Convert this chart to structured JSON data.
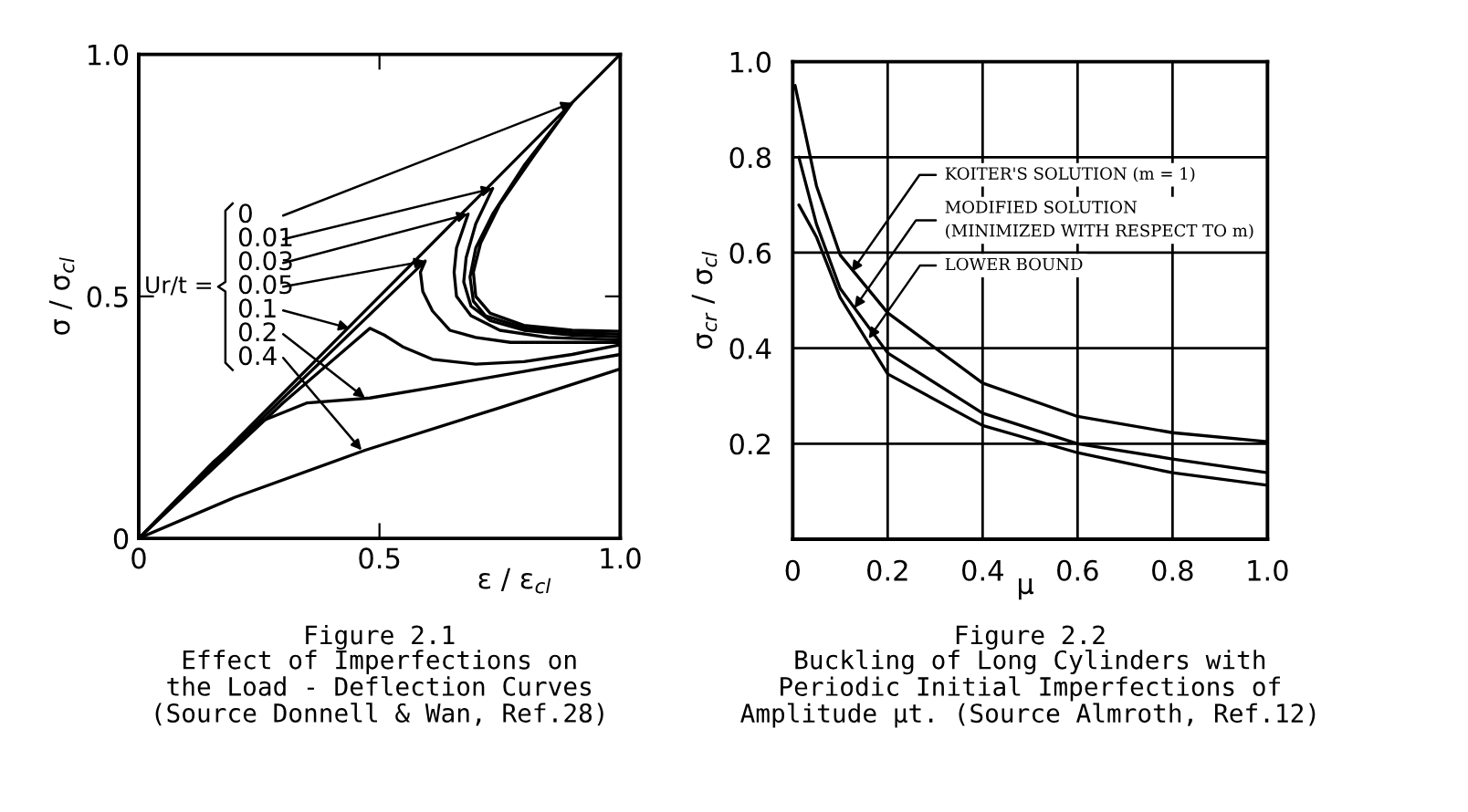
{
  "chart_data": [
    {
      "type": "line",
      "title": "Figure 2.1",
      "subtitle": "Effect of Imperfections on\nthe Load - Deflection Curves\n(Source Donnell & Wan, Ref.28)",
      "xlabel": "ε / ε$_{cl}$",
      "ylabel": "σ / σ$_{cl}$",
      "xlim": [
        0,
        1.0
      ],
      "ylim": [
        0,
        1.0
      ],
      "xticks": [
        0,
        0.5,
        {
          "value": 1.0,
          "label": "1.0"
        }
      ],
      "yticks": [
        0,
        0.5,
        {
          "value": 1.0,
          "label": "1.0"
        }
      ],
      "grid": false,
      "legend": false,
      "marker": "none",
      "line_style": "solid",
      "series": [
        {
          "color": "#000000",
          "x": [
            0,
            1.0
          ],
          "values": [
            0,
            1.0
          ]
        },
        {
          "color": "#000000",
          "x": [
            0.9,
            0.82,
            0.75,
            0.71,
            0.695,
            0.7,
            0.73,
            0.8,
            0.9,
            1.0
          ],
          "values": [
            0.9,
            0.79,
            0.69,
            0.61,
            0.55,
            0.5,
            0.465,
            0.44,
            0.43,
            0.428
          ]
        },
        {
          "color": "#000000",
          "x": [
            0.87,
            0.8,
            0.735,
            0.7,
            0.688,
            0.695,
            0.72,
            0.8,
            0.9,
            1.0
          ],
          "values": [
            0.86,
            0.77,
            0.67,
            0.6,
            0.54,
            0.49,
            0.46,
            0.435,
            0.425,
            0.422
          ]
        },
        {
          "color": "#000000",
          "x": [
            0.735,
            0.7,
            0.68,
            0.675,
            0.69,
            0.73,
            0.8,
            0.9,
            1.0
          ],
          "values": [
            0.723,
            0.65,
            0.58,
            0.53,
            0.48,
            0.45,
            0.43,
            0.42,
            0.416
          ]
        },
        {
          "color": "#000000",
          "x": [
            0.684,
            0.66,
            0.655,
            0.66,
            0.69,
            0.75,
            0.85,
            1.0
          ],
          "values": [
            0.67,
            0.6,
            0.55,
            0.5,
            0.46,
            0.43,
            0.415,
            0.41
          ]
        },
        {
          "color": "#000000",
          "x": [
            0,
            0.3,
            0.595,
            0.585,
            0.59,
            0.61,
            0.646,
            0.7,
            0.772,
            0.9,
            1.0
          ],
          "values": [
            0,
            0.29,
            0.573,
            0.55,
            0.51,
            0.47,
            0.43,
            0.415,
            0.405,
            0.405,
            0.405
          ]
        },
        {
          "color": "#000000",
          "x": [
            0,
            0.15,
            0.3,
            0.44,
            0.48,
            0.51,
            0.55,
            0.61,
            0.7,
            0.8,
            0.9,
            1.0
          ],
          "values": [
            0,
            0.14,
            0.28,
            0.4,
            0.434,
            0.42,
            0.395,
            0.37,
            0.36,
            0.365,
            0.38,
            0.4
          ]
        },
        {
          "color": "#000000",
          "x": [
            0,
            0.154,
            0.25,
            0.35,
            0.48,
            0.6,
            0.8,
            1.0
          ],
          "values": [
            0,
            0.157,
            0.24,
            0.28,
            0.29,
            0.31,
            0.345,
            0.38
          ]
        },
        {
          "color": "#000000",
          "x": [
            0,
            0.2,
            0.47,
            0.75,
            1.0
          ],
          "values": [
            0,
            0.085,
            0.182,
            0.27,
            0.35
          ]
        }
      ],
      "annotations": [
        "Ur/t =",
        {
          "text": "0",
          "x": 0.9,
          "y": 0.9
        },
        {
          "text": "0.01",
          "x": 0.735,
          "y": 0.723
        },
        {
          "text": "0.03",
          "x": 0.684,
          "y": 0.67
        },
        {
          "text": "0.05",
          "x": 0.595,
          "y": 0.573
        },
        {
          "text": "0.1",
          "x": 0.438,
          "y": 0.434
        },
        {
          "text": "0.2",
          "x": 0.47,
          "y": 0.29
        },
        {
          "text": "0.4",
          "x": 0.463,
          "y": 0.182
        }
      ]
    },
    {
      "type": "line",
      "title": "Figure 2.2",
      "subtitle": "Buckling of Long Cylinders with\nPeriodic Initial Imperfections of\nAmplitude µt. (Source Almroth, Ref.12)",
      "xlabel": "μ",
      "ylabel": "σ$_{cr}$ / σ$_{cl}$",
      "xlim": [
        0,
        1.0
      ],
      "ylim": [
        0,
        1.0
      ],
      "xticks": [
        0,
        0.2,
        0.4,
        0.6,
        0.8,
        {
          "value": 1.0,
          "label": "1.0"
        }
      ],
      "yticks": [
        0.2,
        0.4,
        0.6,
        0.8,
        {
          "value": 1.0,
          "label": "1.0"
        }
      ],
      "grid": true,
      "legend": false,
      "marker": "none",
      "line_style": "solid",
      "series": [
        {
          "color": "#000000",
          "x": [
            0.005,
            0.05,
            0.1,
            0.2,
            0.4,
            0.6,
            0.8,
            1.0
          ],
          "values": [
            0.95,
            0.74,
            0.595,
            0.474,
            0.327,
            0.257,
            0.223,
            0.204
          ]
        },
        {
          "color": "#000000",
          "x": [
            0.013,
            0.05,
            0.1,
            0.2,
            0.4,
            0.6,
            0.8,
            1.0
          ],
          "values": [
            0.8,
            0.66,
            0.525,
            0.39,
            0.264,
            0.2,
            0.168,
            0.139
          ]
        },
        {
          "color": "#000000",
          "x": [
            0.013,
            0.05,
            0.1,
            0.2,
            0.4,
            0.6,
            0.8,
            1.0
          ],
          "values": [
            0.7,
            0.633,
            0.506,
            0.346,
            0.238,
            0.181,
            0.139,
            0.113
          ]
        }
      ],
      "annotations": [
        {
          "text": "KOITER'S SOLUTION (m = 1)",
          "x": 0.124,
          "y": 0.56
        },
        {
          "text": "MODIFIED SOLUTION\n(MINIMIZED WITH RESPECT TO m)",
          "x": 0.13,
          "y": 0.484
        },
        {
          "text": "LOWER BOUND",
          "x": 0.16,
          "y": 0.42
        }
      ]
    }
  ]
}
